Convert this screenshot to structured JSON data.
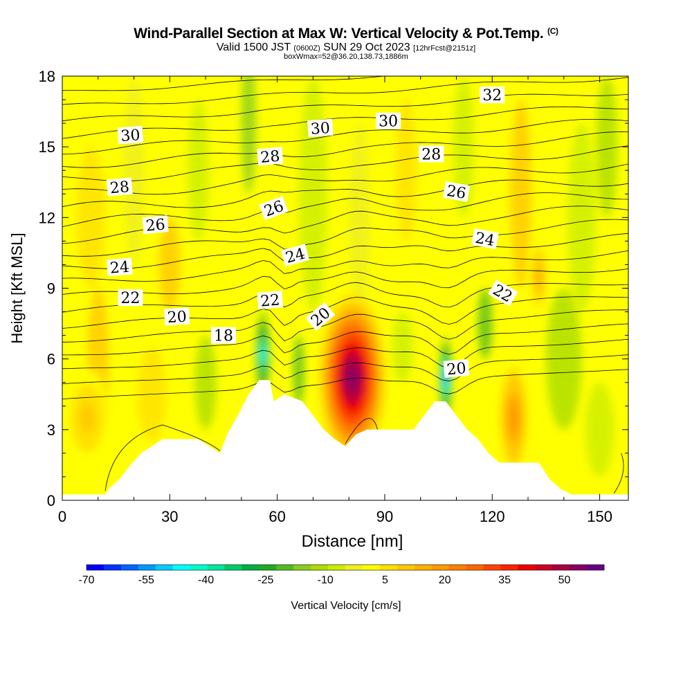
{
  "title": {
    "main": "Wind-Parallel Section at Max W: Vertical Velocity & Pot.Temp.",
    "main_suffix": "(C)",
    "line2_a": "Valid 1500 JST",
    "line2_b": "(0600Z)",
    "line2_c": "SUN 29 Oct 2023",
    "line2_d": "[12hrFcst@2151z]",
    "line3": "boxWmax=52@36.20,138.73,1886m"
  },
  "chart_data": {
    "type": "contour-cross-section",
    "xlabel": "Distance [nm]",
    "ylabel": "Height [Kft MSL]",
    "xlim": [
      0,
      158
    ],
    "ylim": [
      0,
      18
    ],
    "x_ticks": [
      "0",
      "30",
      "60",
      "90",
      "120",
      "150"
    ],
    "y_ticks": [
      "0",
      "3",
      "6",
      "9",
      "12",
      "15",
      "18"
    ],
    "colorbar": {
      "label": "Vertical Velocity [cm/s]",
      "tick_labels": [
        "-70",
        "-55",
        "-40",
        "-25",
        "-10",
        "5",
        "20",
        "35",
        "50"
      ],
      "range": [
        -70,
        60
      ],
      "colors": [
        "#0000ff",
        "#0033ff",
        "#0066ff",
        "#0099ff",
        "#00ccff",
        "#00ffff",
        "#00ffcc",
        "#00e89a",
        "#00cc66",
        "#00b040",
        "#22aa22",
        "#55bb22",
        "#88cc22",
        "#aadd00",
        "#ccee00",
        "#eeee22",
        "#ffff00",
        "#ffe000",
        "#ffc800",
        "#ffb000",
        "#ff9a00",
        "#ff7f00",
        "#ff6600",
        "#ff4400",
        "#ff2200",
        "#ee0000",
        "#cc0022",
        "#aa0044",
        "#880066",
        "#660088"
      ]
    },
    "theta_contour_labels": [
      {
        "text": "30",
        "x": 19,
        "y": 15.5,
        "angle": -4
      },
      {
        "text": "30",
        "x": 72,
        "y": 15.8,
        "angle": -4
      },
      {
        "text": "30",
        "x": 91,
        "y": 16.1,
        "angle": 0
      },
      {
        "text": "32",
        "x": 120,
        "y": 17.2,
        "angle": 0
      },
      {
        "text": "28",
        "x": 16,
        "y": 13.3,
        "angle": -5
      },
      {
        "text": "28",
        "x": 58,
        "y": 14.6,
        "angle": -5
      },
      {
        "text": "28",
        "x": 103,
        "y": 14.7,
        "angle": 0
      },
      {
        "text": "26",
        "x": 26,
        "y": 11.7,
        "angle": -5
      },
      {
        "text": "26",
        "x": 59,
        "y": 12.4,
        "angle": -20
      },
      {
        "text": "26",
        "x": 110,
        "y": 13.1,
        "angle": 10
      },
      {
        "text": "24",
        "x": 16,
        "y": 9.9,
        "angle": -4
      },
      {
        "text": "24",
        "x": 65,
        "y": 10.4,
        "angle": -15
      },
      {
        "text": "24",
        "x": 118,
        "y": 11.1,
        "angle": 10
      },
      {
        "text": "22",
        "x": 19,
        "y": 8.6,
        "angle": 0
      },
      {
        "text": "22",
        "x": 58,
        "y": 8.5,
        "angle": -5
      },
      {
        "text": "22",
        "x": 123,
        "y": 8.8,
        "angle": 30
      },
      {
        "text": "20",
        "x": 32,
        "y": 7.8,
        "angle": -3
      },
      {
        "text": "20",
        "x": 72,
        "y": 7.8,
        "angle": -40
      },
      {
        "text": "20",
        "x": 110,
        "y": 5.6,
        "angle": -5
      },
      {
        "text": "18",
        "x": 45,
        "y": 7.0,
        "angle": 0
      }
    ],
    "terrain_height": [
      [
        0,
        0.25
      ],
      [
        12,
        0.25
      ],
      [
        13,
        0.5
      ],
      [
        16,
        0.9
      ],
      [
        19,
        1.5
      ],
      [
        22,
        2.0
      ],
      [
        25,
        2.3
      ],
      [
        28,
        2.6
      ],
      [
        38,
        2.6
      ],
      [
        41,
        2.3
      ],
      [
        44,
        2.0
      ],
      [
        46,
        2.8
      ],
      [
        49,
        3.6
      ],
      [
        52,
        4.5
      ],
      [
        55,
        5.1
      ],
      [
        58,
        5.1
      ],
      [
        59,
        4.2
      ],
      [
        62,
        4.5
      ],
      [
        67,
        4.2
      ],
      [
        70,
        3.6
      ],
      [
        73,
        3.0
      ],
      [
        76,
        2.6
      ],
      [
        79,
        2.3
      ],
      [
        82,
        2.8
      ],
      [
        85,
        3.0
      ],
      [
        98,
        3.0
      ],
      [
        101,
        3.6
      ],
      [
        104,
        4.2
      ],
      [
        107,
        4.2
      ],
      [
        110,
        3.6
      ],
      [
        113,
        3.0
      ],
      [
        116,
        2.6
      ],
      [
        119,
        2.0
      ],
      [
        122,
        1.6
      ],
      [
        133,
        1.6
      ],
      [
        136,
        0.9
      ],
      [
        139,
        0.5
      ],
      [
        142,
        0.25
      ],
      [
        158,
        0.25
      ]
    ],
    "vertical_velocity_features": [
      {
        "x": 81,
        "y": 5.2,
        "rx": 9,
        "ry": 3.5,
        "w": 55
      },
      {
        "x": 56,
        "y": 6.2,
        "rx": 1.8,
        "ry": 2.0,
        "w": -45
      },
      {
        "x": 107,
        "y": 5.2,
        "rx": 1.5,
        "ry": 1.8,
        "w": -55
      },
      {
        "x": 126,
        "y": 3.5,
        "rx": 4,
        "ry": 2.5,
        "w": 20
      },
      {
        "x": 7,
        "y": 3.5,
        "rx": 6,
        "ry": 2,
        "w": 10
      },
      {
        "x": 133,
        "y": 9.5,
        "rx": 2,
        "ry": 1.5,
        "w": 15
      }
    ],
    "grid": false,
    "legend": "colorbar-bottom"
  }
}
